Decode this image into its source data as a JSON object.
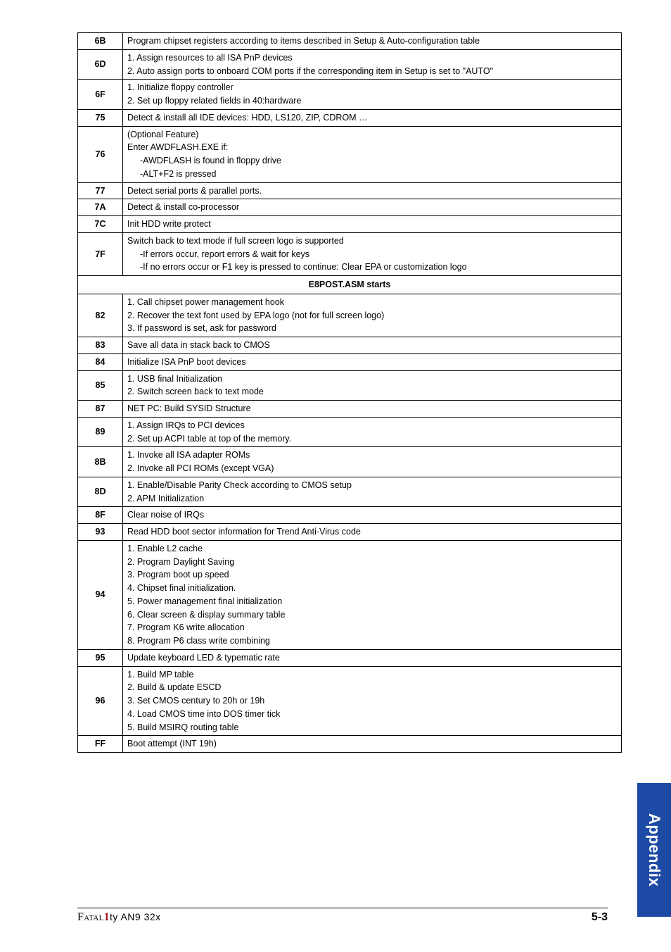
{
  "rows": [
    {
      "code": "6B",
      "lines": [
        "Program chipset registers according to items described in Setup & Auto-configuration table"
      ]
    },
    {
      "code": "6D",
      "lines": [
        "1. Assign resources to all ISA PnP devices",
        "2. Auto assign ports to onboard COM ports if the corresponding item in Setup is set to \"AUTO\""
      ],
      "wrap": [
        1
      ]
    },
    {
      "code": "6F",
      "lines": [
        "1. Initialize floppy controller",
        "2. Set up floppy related fields in 40:hardware"
      ]
    },
    {
      "code": "75",
      "lines": [
        "Detect & install all IDE devices: HDD, LS120, ZIP, CDROM …"
      ]
    },
    {
      "code": "76",
      "lines": [
        "(Optional Feature)",
        "Enter AWDFLASH.EXE if:",
        "-AWDFLASH is found in floppy drive",
        "-ALT+F2 is pressed"
      ],
      "indents": {
        "2": 1,
        "3": 1
      }
    },
    {
      "code": "77",
      "lines": [
        "Detect serial ports & parallel ports."
      ]
    },
    {
      "code": "7A",
      "lines": [
        "Detect & install co-processor"
      ]
    },
    {
      "code": "7C",
      "lines": [
        "Init HDD write protect"
      ]
    },
    {
      "code": "7F",
      "lines": [
        "Switch back to text mode if full screen logo is supported",
        "-If errors occur, report errors & wait for keys",
        "-If no errors occur or F1 key is pressed to continue: Clear EPA or customization logo"
      ],
      "indents": {
        "1": 1,
        "2": 1
      }
    },
    {
      "section": "E8POST.ASM starts"
    },
    {
      "code": "82",
      "lines": [
        "1. Call chipset power management hook",
        "2. Recover the text font used by EPA logo (not for full screen logo)",
        "3. If password is set, ask for password"
      ]
    },
    {
      "code": "83",
      "lines": [
        "Save all data in stack back to CMOS"
      ]
    },
    {
      "code": "84",
      "lines": [
        "Initialize ISA PnP boot devices"
      ]
    },
    {
      "code": "85",
      "lines": [
        "1. USB final Initialization",
        "2. Switch screen back to text mode"
      ]
    },
    {
      "code": "87",
      "lines": [
        "NET PC: Build SYSID Structure"
      ]
    },
    {
      "code": "89",
      "lines": [
        "1. Assign IRQs to PCI devices",
        "2. Set up ACPI table at top of the memory."
      ]
    },
    {
      "code": "8B",
      "lines": [
        "1. Invoke all ISA adapter ROMs",
        "2. Invoke all PCI ROMs (except VGA)"
      ]
    },
    {
      "code": "8D",
      "lines": [
        "1. Enable/Disable Parity Check according to CMOS setup",
        "2. APM Initialization"
      ]
    },
    {
      "code": "8F",
      "lines": [
        "Clear noise of IRQs"
      ]
    },
    {
      "code": "93",
      "lines": [
        "Read HDD boot sector information for Trend Anti-Virus code"
      ]
    },
    {
      "code": "94",
      "lines": [
        "1. Enable L2 cache",
        "2. Program Daylight Saving",
        "3. Program boot up speed",
        "4. Chipset final initialization.",
        "5. Power management final initialization",
        "6. Clear screen & display summary table",
        "7. Program K6 write allocation",
        "8. Program P6 class write combining"
      ]
    },
    {
      "code": "95",
      "lines": [
        "Update keyboard LED & typematic rate"
      ]
    },
    {
      "code": "96",
      "lines": [
        "1. Build MP table",
        "2. Build & update ESCD",
        "3. Set CMOS century to 20h or 19h",
        "4. Load CMOS time into DOS timer tick",
        "5. Build MSIRQ routing table"
      ]
    },
    {
      "code": "FF",
      "lines": [
        "Boot attempt (INT 19h)"
      ]
    }
  ],
  "sideTab": "Appendix",
  "footer": {
    "brand": "Fatal",
    "one": "1",
    "model": "ty AN9 32x",
    "page": "5-3"
  }
}
